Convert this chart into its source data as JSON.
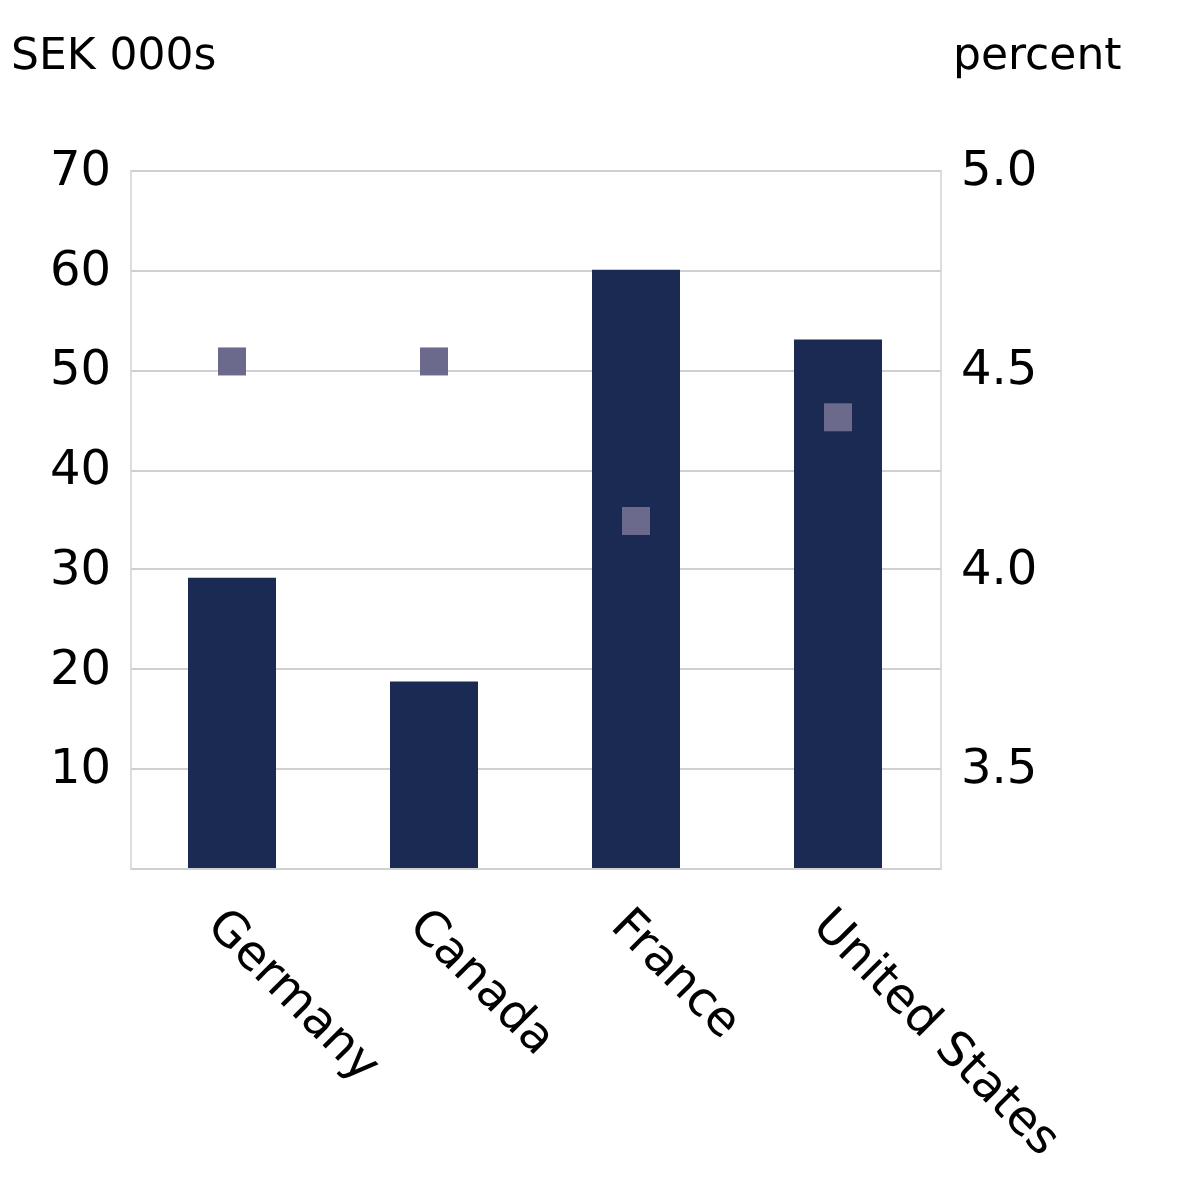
{
  "chart_data": {
    "type": "bar",
    "ylabel": "SEK 000s",
    "y2label": "percent",
    "categories": [
      "Germany",
      "Canada",
      "France",
      "United States"
    ],
    "series": [
      {
        "color": "#1b2a52",
        "values": [
          29.1,
          18.7,
          60,
          53
        ]
      },
      {
        "type": "scatter",
        "axis": "y2",
        "marker": "square",
        "color": "#6b6a8c",
        "values": [
          4.52,
          4.52,
          4.12,
          4.38
        ]
      }
    ],
    "ylim": [
      0,
      70
    ],
    "yticks": [
      10,
      20,
      30,
      40,
      50,
      60,
      70
    ],
    "y2lim": [
      3.25,
      5.0
    ],
    "y2ticks": [
      3.5,
      {
        "value": 4.0,
        "label": "4.0"
      },
      4.5,
      {
        "value": 5.0,
        "label": "5.0"
      }
    ],
    "grid": "y"
  }
}
